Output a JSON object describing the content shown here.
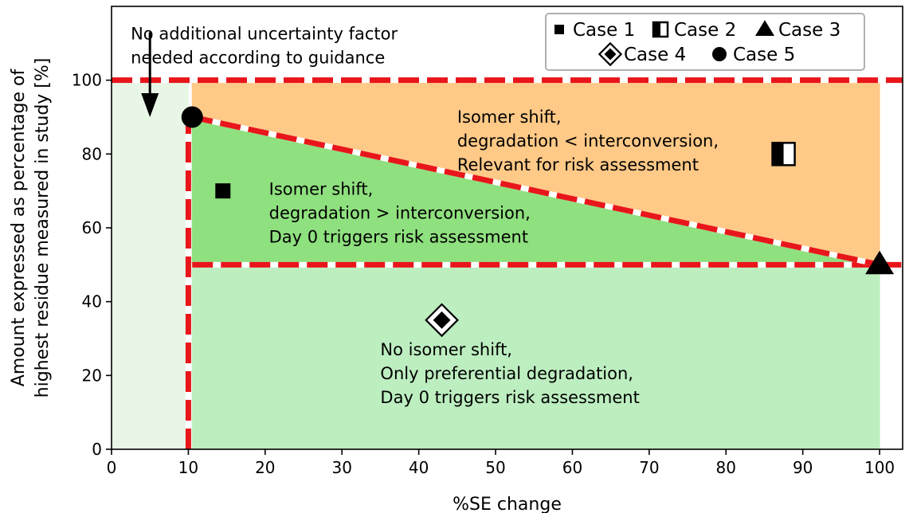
{
  "chart_data": {
    "type": "scatter",
    "title": "",
    "xlabel": "%SE change",
    "ylabel_lines": [
      "Amount expressed as percentage of",
      "highest residue measured in study [%]"
    ],
    "xlim": [
      0,
      103
    ],
    "ylim": [
      0,
      120
    ],
    "xticks": [
      0,
      10,
      20,
      30,
      40,
      50,
      60,
      70,
      80,
      90,
      100
    ],
    "yticks": [
      0,
      20,
      40,
      60,
      80,
      100
    ],
    "grid": false,
    "legend_position": "top-right",
    "series": [
      {
        "name": "Case 1",
        "marker": "square",
        "x": [
          14.5
        ],
        "y": [
          70
        ]
      },
      {
        "name": "Case 2",
        "marker": "half-filled-square",
        "x": [
          87.5
        ],
        "y": [
          80
        ]
      },
      {
        "name": "Case 3",
        "marker": "triangle",
        "x": [
          100
        ],
        "y": [
          50
        ]
      },
      {
        "name": "Case 4",
        "marker": "double-diamond",
        "x": [
          43
        ],
        "y": [
          35
        ]
      },
      {
        "name": "Case 5",
        "marker": "circle",
        "x": [
          10.5
        ],
        "y": [
          90
        ]
      }
    ],
    "regions": [
      {
        "id": "no-factor",
        "color": "#e8f6e6",
        "polygon": [
          [
            0,
            0
          ],
          [
            10,
            0
          ],
          [
            10,
            100
          ],
          [
            0,
            100
          ]
        ]
      },
      {
        "id": "orange",
        "color": "#ffc987",
        "polygon": [
          [
            10.5,
            90
          ],
          [
            10.5,
            99.5
          ],
          [
            100,
            99.5
          ],
          [
            100,
            50.5
          ]
        ]
      },
      {
        "id": "green-triangle",
        "color": "#8fe07f",
        "polygon": [
          [
            10.5,
            50
          ],
          [
            10.5,
            90
          ],
          [
            100,
            50
          ]
        ]
      },
      {
        "id": "light-green",
        "color": "#bdeec0",
        "polygon": [
          [
            10.5,
            0
          ],
          [
            10.5,
            49.5
          ],
          [
            100,
            49.5
          ],
          [
            100,
            0
          ]
        ]
      }
    ],
    "threshold_lines": [
      {
        "from": [
          0,
          100
        ],
        "to": [
          103,
          100
        ]
      },
      {
        "from": [
          10,
          0
        ],
        "to": [
          10,
          90
        ]
      },
      {
        "from": [
          10.5,
          50
        ],
        "to": [
          103,
          50
        ]
      },
      {
        "from": [
          10.5,
          90
        ],
        "to": [
          100,
          50
        ]
      }
    ],
    "arrow": {
      "from": [
        5,
        113
      ],
      "to": [
        5,
        90
      ]
    },
    "annotations": [
      {
        "id": "note-no-factor",
        "lines": [
          "No additional uncertainty factor",
          "needed according to guidance"
        ],
        "x": 2.5,
        "y": 111
      },
      {
        "id": "label-orange",
        "lines": [
          "Isomer shift,",
          "degradation < interconversion,",
          "Relevant for risk assessment"
        ],
        "x": 45,
        "y": 88.5
      },
      {
        "id": "label-green",
        "lines": [
          "Isomer shift,",
          "degradation > interconversion,",
          "Day 0 triggers risk assessment"
        ],
        "x": 20.5,
        "y": 69
      },
      {
        "id": "label-light-green",
        "lines": [
          "No isomer shift,",
          "Only preferential degradation,",
          "Day 0 triggers risk assessment"
        ],
        "x": 35,
        "y": 25.5
      }
    ],
    "colors": {
      "threshold": "#e8161b",
      "dash_gap": "#ffffff",
      "axis": "#000000"
    }
  }
}
